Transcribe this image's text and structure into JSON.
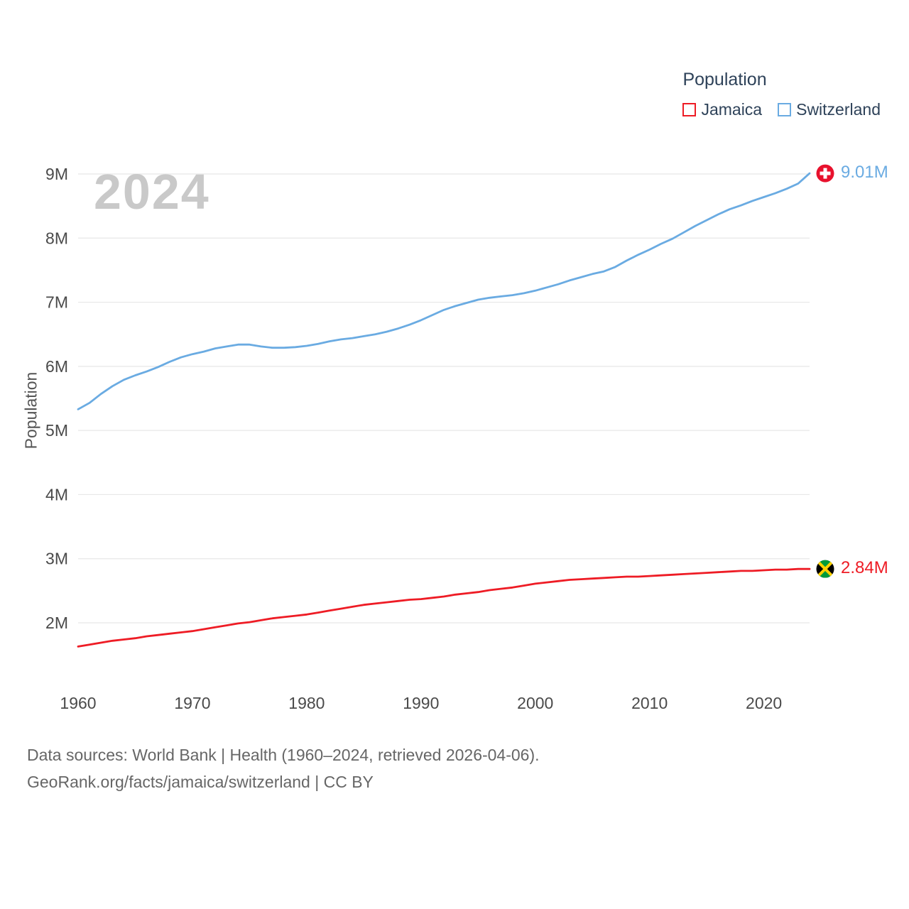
{
  "watermark": "2024",
  "legend": {
    "title": "Population",
    "items": [
      {
        "label": "Jamaica",
        "color": "#ee1c25"
      },
      {
        "label": "Switzerland",
        "color": "#6aabe2"
      }
    ]
  },
  "footer": {
    "line1": "Data sources: World Bank | Health (1960–2024, retrieved 2026-04-06).",
    "line2": "GeoRank.org/facts/jamaica/switzerland | CC BY"
  },
  "chart_data": {
    "type": "line",
    "title": "Population",
    "ylabel": "Population",
    "xlabel": "",
    "x_start": 1960,
    "x_end": 2024,
    "xticks": [
      1960,
      1970,
      1980,
      1990,
      2000,
      2010,
      2020
    ],
    "yticks": [
      {
        "value": 2,
        "label": "2M"
      },
      {
        "value": 3,
        "label": "3M"
      },
      {
        "value": 4,
        "label": "4M"
      },
      {
        "value": 5,
        "label": "5M"
      },
      {
        "value": 6,
        "label": "6M"
      },
      {
        "value": 7,
        "label": "7M"
      },
      {
        "value": 8,
        "label": "8M"
      },
      {
        "value": 9,
        "label": "9M"
      }
    ],
    "ylim_millions": [
      1.45,
      9.4
    ],
    "grid": "horizontal",
    "legend_position": "top-right",
    "series": [
      {
        "name": "Jamaica",
        "color": "#ee1c25",
        "end_label": "2.84M",
        "flag": "jamaica",
        "unit": "millions",
        "values": [
          1.63,
          1.66,
          1.69,
          1.72,
          1.74,
          1.76,
          1.79,
          1.81,
          1.83,
          1.85,
          1.87,
          1.9,
          1.93,
          1.96,
          1.99,
          2.01,
          2.04,
          2.07,
          2.09,
          2.11,
          2.13,
          2.16,
          2.19,
          2.22,
          2.25,
          2.28,
          2.3,
          2.32,
          2.34,
          2.36,
          2.37,
          2.39,
          2.41,
          2.44,
          2.46,
          2.48,
          2.51,
          2.53,
          2.55,
          2.58,
          2.61,
          2.63,
          2.65,
          2.67,
          2.68,
          2.69,
          2.7,
          2.71,
          2.72,
          2.72,
          2.73,
          2.74,
          2.75,
          2.76,
          2.77,
          2.78,
          2.79,
          2.8,
          2.81,
          2.81,
          2.82,
          2.83,
          2.83,
          2.84,
          2.84
        ]
      },
      {
        "name": "Switzerland",
        "color": "#6aabe2",
        "end_label": "9.01M",
        "flag": "switzerland",
        "unit": "millions",
        "values": [
          5.33,
          5.43,
          5.57,
          5.69,
          5.79,
          5.86,
          5.92,
          5.99,
          6.07,
          6.14,
          6.19,
          6.23,
          6.28,
          6.31,
          6.34,
          6.34,
          6.31,
          6.29,
          6.29,
          6.3,
          6.32,
          6.35,
          6.39,
          6.42,
          6.44,
          6.47,
          6.5,
          6.54,
          6.59,
          6.65,
          6.72,
          6.8,
          6.88,
          6.94,
          6.99,
          7.04,
          7.07,
          7.09,
          7.11,
          7.14,
          7.18,
          7.23,
          7.28,
          7.34,
          7.39,
          7.44,
          7.48,
          7.55,
          7.65,
          7.74,
          7.82,
          7.91,
          7.99,
          8.09,
          8.19,
          8.28,
          8.37,
          8.45,
          8.51,
          8.58,
          8.64,
          8.7,
          8.77,
          8.85,
          9.01
        ]
      }
    ]
  }
}
